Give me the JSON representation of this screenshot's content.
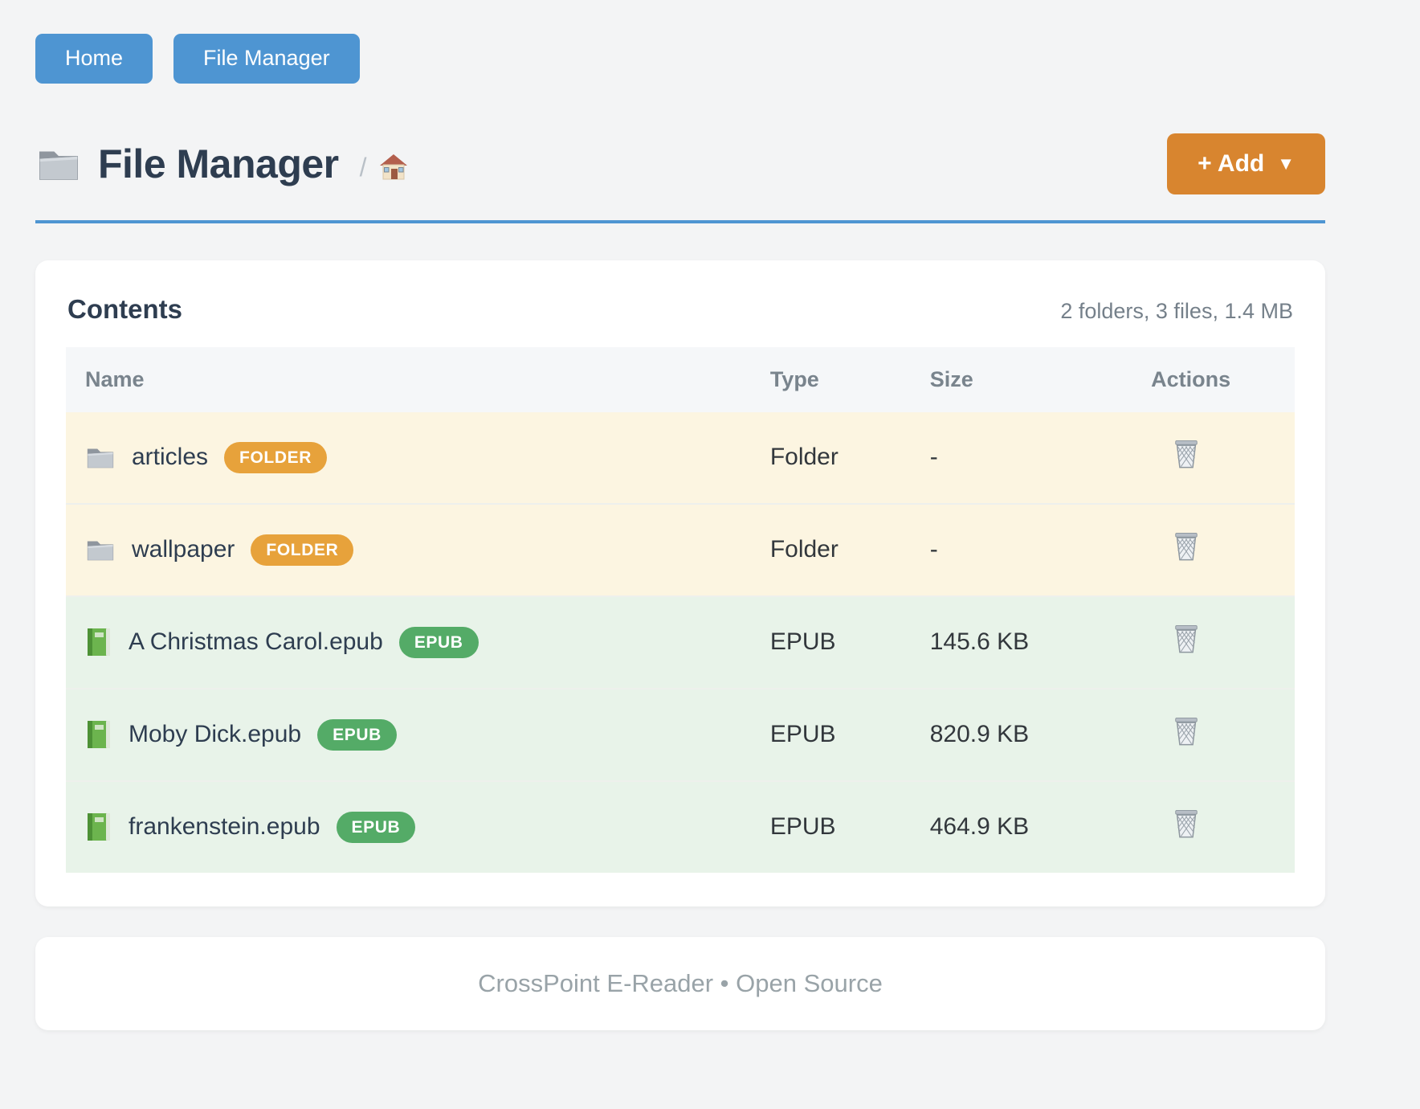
{
  "nav": {
    "home_label": "Home",
    "file_manager_label": "File Manager"
  },
  "header": {
    "title": "File Manager",
    "title_icon": "folder-icon",
    "breadcrumb_separator": "/",
    "breadcrumb_home_icon": "house-icon",
    "add_button_label": "+ Add",
    "add_button_caret": "▼"
  },
  "contents": {
    "title": "Contents",
    "summary": "2 folders, 3 files, 1.4 MB"
  },
  "table": {
    "columns": [
      "Name",
      "Type",
      "Size",
      "Actions"
    ],
    "action_icon": "trash-icon",
    "rows": [
      {
        "name": "articles",
        "icon": "folder-icon",
        "badge": "FOLDER",
        "kind": "folder",
        "type": "Folder",
        "size": "-"
      },
      {
        "name": "wallpaper",
        "icon": "folder-icon",
        "badge": "FOLDER",
        "kind": "folder",
        "type": "Folder",
        "size": "-"
      },
      {
        "name": "A Christmas Carol.epub",
        "icon": "book-icon",
        "badge": "EPUB",
        "kind": "epub",
        "type": "EPUB",
        "size": "145.6 KB"
      },
      {
        "name": "Moby Dick.epub",
        "icon": "book-icon",
        "badge": "EPUB",
        "kind": "epub",
        "type": "EPUB",
        "size": "820.9 KB"
      },
      {
        "name": "frankenstein.epub",
        "icon": "book-icon",
        "badge": "EPUB",
        "kind": "epub",
        "type": "EPUB",
        "size": "464.9 KB"
      }
    ]
  },
  "footer": {
    "text": "CrossPoint E-Reader • Open Source"
  },
  "colors": {
    "nav_button": "#4e95d2",
    "header_rule": "#4e95d2",
    "add_button": "#d8852f",
    "folder_badge": "#e7a23b",
    "epub_badge": "#54ab67",
    "folder_row_bg": "#fcf5e1",
    "epub_row_bg": "#e8f3e9",
    "table_header_bg": "#f5f7f9"
  }
}
